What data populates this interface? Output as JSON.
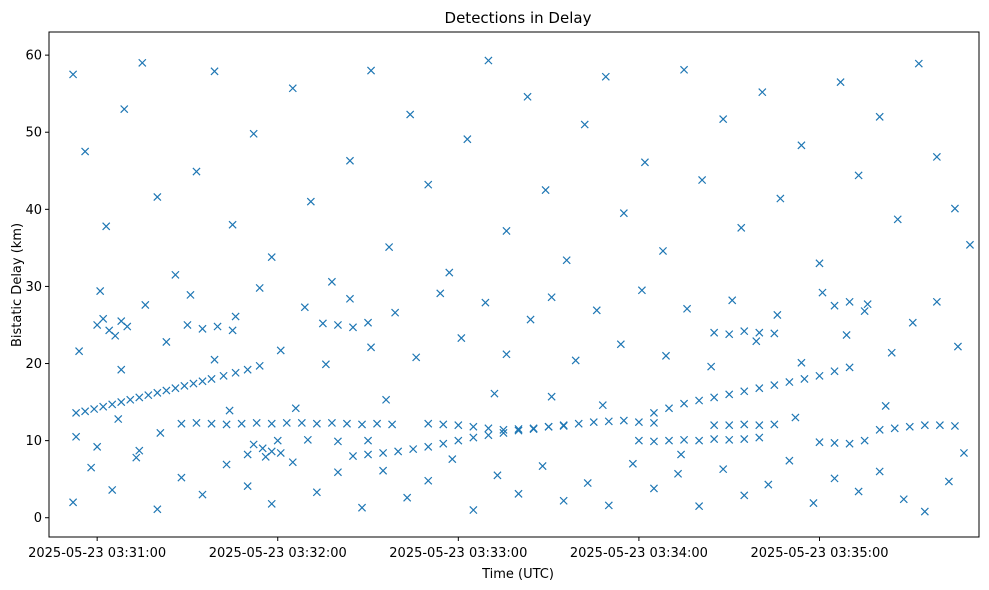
{
  "chart_data": {
    "type": "scatter",
    "title": "Detections in Delay",
    "xlabel": "Time (UTC)",
    "ylabel": "Bistatic Delay (km)",
    "marker": "x",
    "marker_color": "#1f77b4",
    "grid": false,
    "legend": false,
    "xlim": [
      "2025-05-23 03:30:44",
      "2025-05-23 03:35:53"
    ],
    "ylim": [
      -2.5,
      63.0
    ],
    "x_ticks": [
      "2025-05-23 03:31:00",
      "2025-05-23 03:32:00",
      "2025-05-23 03:33:00",
      "2025-05-23 03:34:00",
      "2025-05-23 03:35:00"
    ],
    "y_ticks": [
      0,
      10,
      20,
      30,
      40,
      50,
      60
    ],
    "series": [
      {
        "description_of_tracks": "Sampled detections; times are 2025-05-23 03:MM:SS",
        "points": [
          [
            "03:30:53",
            13.6
          ],
          [
            "03:30:56",
            13.8
          ],
          [
            "03:30:59",
            14.1
          ],
          [
            "03:31:02",
            14.4
          ],
          [
            "03:31:05",
            14.7
          ],
          [
            "03:31:08",
            15.0
          ],
          [
            "03:31:11",
            15.3
          ],
          [
            "03:31:14",
            15.6
          ],
          [
            "03:31:17",
            15.9
          ],
          [
            "03:31:20",
            16.2
          ],
          [
            "03:31:23",
            16.5
          ],
          [
            "03:31:26",
            16.8
          ],
          [
            "03:31:29",
            17.1
          ],
          [
            "03:31:32",
            17.4
          ],
          [
            "03:31:35",
            17.7
          ],
          [
            "03:31:38",
            18.0
          ],
          [
            "03:31:42",
            18.4
          ],
          [
            "03:31:46",
            18.8
          ],
          [
            "03:31:50",
            19.2
          ],
          [
            "03:31:54",
            19.7
          ],
          [
            "03:31:28",
            12.2
          ],
          [
            "03:31:33",
            12.3
          ],
          [
            "03:31:38",
            12.2
          ],
          [
            "03:31:43",
            12.1
          ],
          [
            "03:31:48",
            12.2
          ],
          [
            "03:31:53",
            12.3
          ],
          [
            "03:31:58",
            12.2
          ],
          [
            "03:32:03",
            12.3
          ],
          [
            "03:32:08",
            12.3
          ],
          [
            "03:32:13",
            12.2
          ],
          [
            "03:32:18",
            12.3
          ],
          [
            "03:32:23",
            12.2
          ],
          [
            "03:32:28",
            12.1
          ],
          [
            "03:32:33",
            12.2
          ],
          [
            "03:32:38",
            12.1
          ],
          [
            "03:32:00",
            10.0
          ],
          [
            "03:32:10",
            10.1
          ],
          [
            "03:32:20",
            9.9
          ],
          [
            "03:32:30",
            10.0
          ],
          [
            "03:31:52",
            9.5
          ],
          [
            "03:31:55",
            9.0
          ],
          [
            "03:31:58",
            8.6
          ],
          [
            "03:32:01",
            8.4
          ],
          [
            "03:31:50",
            8.2
          ],
          [
            "03:31:56",
            7.9
          ],
          [
            "03:32:25",
            8.0
          ],
          [
            "03:32:30",
            8.2
          ],
          [
            "03:32:35",
            8.4
          ],
          [
            "03:32:40",
            8.6
          ],
          [
            "03:32:45",
            8.9
          ],
          [
            "03:32:50",
            9.2
          ],
          [
            "03:32:55",
            9.6
          ],
          [
            "03:33:00",
            10.0
          ],
          [
            "03:33:05",
            10.4
          ],
          [
            "03:33:10",
            10.7
          ],
          [
            "03:33:15",
            11.0
          ],
          [
            "03:33:20",
            11.3
          ],
          [
            "03:33:25",
            11.5
          ],
          [
            "03:33:30",
            11.8
          ],
          [
            "03:33:35",
            12.0
          ],
          [
            "03:33:40",
            12.2
          ],
          [
            "03:33:45",
            12.4
          ],
          [
            "03:33:50",
            12.5
          ],
          [
            "03:33:55",
            12.6
          ],
          [
            "03:34:00",
            12.4
          ],
          [
            "03:34:05",
            12.3
          ],
          [
            "03:32:50",
            12.2
          ],
          [
            "03:32:55",
            12.1
          ],
          [
            "03:33:00",
            12.0
          ],
          [
            "03:33:05",
            11.8
          ],
          [
            "03:33:10",
            11.6
          ],
          [
            "03:33:15",
            11.4
          ],
          [
            "03:33:20",
            11.5
          ],
          [
            "03:33:25",
            11.6
          ],
          [
            "03:33:30",
            11.8
          ],
          [
            "03:33:35",
            11.9
          ],
          [
            "03:34:05",
            13.6
          ],
          [
            "03:34:10",
            14.2
          ],
          [
            "03:34:15",
            14.8
          ],
          [
            "03:34:20",
            15.2
          ],
          [
            "03:34:25",
            15.6
          ],
          [
            "03:34:30",
            16.0
          ],
          [
            "03:34:35",
            16.4
          ],
          [
            "03:34:40",
            16.8
          ],
          [
            "03:34:45",
            17.2
          ],
          [
            "03:34:50",
            17.6
          ],
          [
            "03:34:55",
            18.0
          ],
          [
            "03:35:00",
            18.4
          ],
          [
            "03:35:05",
            19.0
          ],
          [
            "03:35:10",
            19.5
          ],
          [
            "03:34:00",
            10.0
          ],
          [
            "03:34:05",
            9.9
          ],
          [
            "03:34:10",
            10.0
          ],
          [
            "03:34:15",
            10.1
          ],
          [
            "03:34:20",
            10.0
          ],
          [
            "03:34:25",
            10.2
          ],
          [
            "03:34:30",
            10.1
          ],
          [
            "03:34:35",
            10.2
          ],
          [
            "03:34:40",
            10.4
          ],
          [
            "03:34:25",
            12.0
          ],
          [
            "03:34:30",
            12.0
          ],
          [
            "03:34:35",
            12.1
          ],
          [
            "03:34:40",
            12.0
          ],
          [
            "03:34:45",
            12.1
          ],
          [
            "03:35:00",
            9.8
          ],
          [
            "03:35:05",
            9.7
          ],
          [
            "03:35:10",
            9.6
          ],
          [
            "03:35:15",
            10.0
          ],
          [
            "03:35:20",
            11.4
          ],
          [
            "03:35:25",
            11.6
          ],
          [
            "03:35:30",
            11.8
          ],
          [
            "03:35:35",
            12.0
          ],
          [
            "03:35:40",
            12.0
          ],
          [
            "03:35:45",
            11.9
          ],
          [
            "03:31:00",
            25.0
          ],
          [
            "03:31:02",
            25.8
          ],
          [
            "03:31:04",
            24.3
          ],
          [
            "03:31:06",
            23.6
          ],
          [
            "03:31:08",
            25.5
          ],
          [
            "03:31:10",
            24.8
          ],
          [
            "03:31:30",
            25.0
          ],
          [
            "03:31:35",
            24.5
          ],
          [
            "03:31:40",
            24.8
          ],
          [
            "03:31:45",
            24.3
          ],
          [
            "03:32:15",
            25.2
          ],
          [
            "03:32:20",
            25.0
          ],
          [
            "03:32:25",
            24.7
          ],
          [
            "03:32:30",
            25.3
          ],
          [
            "03:34:25",
            24.0
          ],
          [
            "03:34:30",
            23.8
          ],
          [
            "03:34:35",
            24.2
          ],
          [
            "03:34:40",
            24.0
          ],
          [
            "03:34:45",
            23.9
          ],
          [
            "03:35:05",
            27.5
          ],
          [
            "03:35:10",
            28.0
          ],
          [
            "03:35:15",
            26.8
          ],
          [
            "03:30:52",
            57.5
          ],
          [
            "03:30:56",
            47.5
          ],
          [
            "03:31:03",
            37.8
          ],
          [
            "03:31:09",
            53.0
          ],
          [
            "03:31:15",
            59.0
          ],
          [
            "03:31:20",
            41.6
          ],
          [
            "03:31:26",
            31.5
          ],
          [
            "03:31:33",
            44.9
          ],
          [
            "03:31:39",
            57.9
          ],
          [
            "03:31:45",
            38.0
          ],
          [
            "03:31:52",
            49.8
          ],
          [
            "03:31:58",
            33.8
          ],
          [
            "03:32:05",
            55.7
          ],
          [
            "03:32:11",
            41.0
          ],
          [
            "03:32:18",
            30.6
          ],
          [
            "03:32:24",
            46.3
          ],
          [
            "03:32:31",
            58.0
          ],
          [
            "03:32:37",
            35.1
          ],
          [
            "03:32:44",
            52.3
          ],
          [
            "03:32:50",
            43.2
          ],
          [
            "03:32:57",
            31.8
          ],
          [
            "03:33:03",
            49.1
          ],
          [
            "03:33:10",
            59.3
          ],
          [
            "03:33:16",
            37.2
          ],
          [
            "03:33:23",
            54.6
          ],
          [
            "03:33:29",
            42.5
          ],
          [
            "03:33:36",
            33.4
          ],
          [
            "03:33:42",
            51.0
          ],
          [
            "03:33:49",
            57.2
          ],
          [
            "03:33:55",
            39.5
          ],
          [
            "03:34:02",
            46.1
          ],
          [
            "03:34:08",
            34.6
          ],
          [
            "03:34:15",
            58.1
          ],
          [
            "03:34:21",
            43.8
          ],
          [
            "03:34:28",
            51.7
          ],
          [
            "03:34:34",
            37.6
          ],
          [
            "03:34:41",
            55.2
          ],
          [
            "03:34:47",
            41.4
          ],
          [
            "03:34:54",
            48.3
          ],
          [
            "03:35:00",
            33.0
          ],
          [
            "03:35:07",
            56.5
          ],
          [
            "03:35:13",
            44.4
          ],
          [
            "03:35:20",
            52.0
          ],
          [
            "03:35:26",
            38.7
          ],
          [
            "03:35:33",
            58.9
          ],
          [
            "03:35:39",
            46.8
          ],
          [
            "03:35:45",
            40.1
          ],
          [
            "03:35:50",
            35.4
          ],
          [
            "03:30:54",
            21.6
          ],
          [
            "03:31:01",
            29.4
          ],
          [
            "03:31:08",
            19.2
          ],
          [
            "03:31:16",
            27.6
          ],
          [
            "03:31:23",
            22.8
          ],
          [
            "03:31:31",
            28.9
          ],
          [
            "03:31:39",
            20.5
          ],
          [
            "03:31:46",
            26.1
          ],
          [
            "03:31:54",
            29.8
          ],
          [
            "03:32:01",
            21.7
          ],
          [
            "03:32:09",
            27.3
          ],
          [
            "03:32:16",
            19.9
          ],
          [
            "03:32:24",
            28.4
          ],
          [
            "03:32:31",
            22.1
          ],
          [
            "03:32:39",
            26.6
          ],
          [
            "03:32:46",
            20.8
          ],
          [
            "03:32:54",
            29.1
          ],
          [
            "03:33:01",
            23.3
          ],
          [
            "03:33:09",
            27.9
          ],
          [
            "03:33:16",
            21.2
          ],
          [
            "03:33:24",
            25.7
          ],
          [
            "03:33:31",
            28.6
          ],
          [
            "03:33:39",
            20.4
          ],
          [
            "03:33:46",
            26.9
          ],
          [
            "03:33:54",
            22.5
          ],
          [
            "03:34:01",
            29.5
          ],
          [
            "03:34:09",
            21.0
          ],
          [
            "03:34:16",
            27.1
          ],
          [
            "03:34:24",
            19.6
          ],
          [
            "03:34:31",
            28.2
          ],
          [
            "03:34:39",
            22.9
          ],
          [
            "03:34:46",
            26.3
          ],
          [
            "03:34:54",
            20.1
          ],
          [
            "03:35:01",
            29.2
          ],
          [
            "03:35:09",
            23.7
          ],
          [
            "03:35:16",
            27.7
          ],
          [
            "03:35:24",
            21.4
          ],
          [
            "03:35:31",
            25.3
          ],
          [
            "03:35:39",
            28.0
          ],
          [
            "03:35:46",
            22.2
          ],
          [
            "03:30:52",
            2.0
          ],
          [
            "03:30:58",
            6.5
          ],
          [
            "03:31:05",
            3.6
          ],
          [
            "03:31:13",
            7.8
          ],
          [
            "03:31:20",
            1.1
          ],
          [
            "03:31:28",
            5.2
          ],
          [
            "03:31:35",
            3.0
          ],
          [
            "03:31:43",
            6.9
          ],
          [
            "03:31:50",
            4.1
          ],
          [
            "03:31:58",
            1.8
          ],
          [
            "03:32:05",
            7.2
          ],
          [
            "03:32:13",
            3.3
          ],
          [
            "03:32:20",
            5.9
          ],
          [
            "03:32:28",
            1.3
          ],
          [
            "03:32:35",
            6.1
          ],
          [
            "03:32:43",
            2.6
          ],
          [
            "03:32:50",
            4.8
          ],
          [
            "03:32:58",
            7.6
          ],
          [
            "03:33:05",
            1.0
          ],
          [
            "03:33:13",
            5.5
          ],
          [
            "03:33:20",
            3.1
          ],
          [
            "03:33:28",
            6.7
          ],
          [
            "03:33:35",
            2.2
          ],
          [
            "03:33:43",
            4.5
          ],
          [
            "03:33:50",
            1.6
          ],
          [
            "03:33:58",
            7.0
          ],
          [
            "03:34:05",
            3.8
          ],
          [
            "03:34:13",
            5.7
          ],
          [
            "03:34:20",
            1.5
          ],
          [
            "03:34:28",
            6.3
          ],
          [
            "03:34:35",
            2.9
          ],
          [
            "03:34:43",
            4.3
          ],
          [
            "03:34:50",
            7.4
          ],
          [
            "03:34:58",
            1.9
          ],
          [
            "03:35:05",
            5.1
          ],
          [
            "03:35:13",
            3.4
          ],
          [
            "03:35:20",
            6.0
          ],
          [
            "03:35:28",
            2.4
          ],
          [
            "03:35:35",
            0.8
          ],
          [
            "03:35:43",
            4.7
          ],
          [
            "03:30:53",
            10.5
          ],
          [
            "03:31:00",
            9.2
          ],
          [
            "03:31:07",
            12.8
          ],
          [
            "03:31:14",
            8.7
          ],
          [
            "03:31:21",
            11.0
          ],
          [
            "03:31:44",
            13.9
          ],
          [
            "03:32:06",
            14.2
          ],
          [
            "03:32:36",
            15.3
          ],
          [
            "03:33:12",
            16.1
          ],
          [
            "03:33:31",
            15.7
          ],
          [
            "03:33:48",
            14.6
          ],
          [
            "03:34:14",
            8.2
          ],
          [
            "03:34:52",
            13.0
          ],
          [
            "03:35:22",
            14.5
          ],
          [
            "03:35:48",
            8.4
          ]
        ]
      }
    ]
  }
}
